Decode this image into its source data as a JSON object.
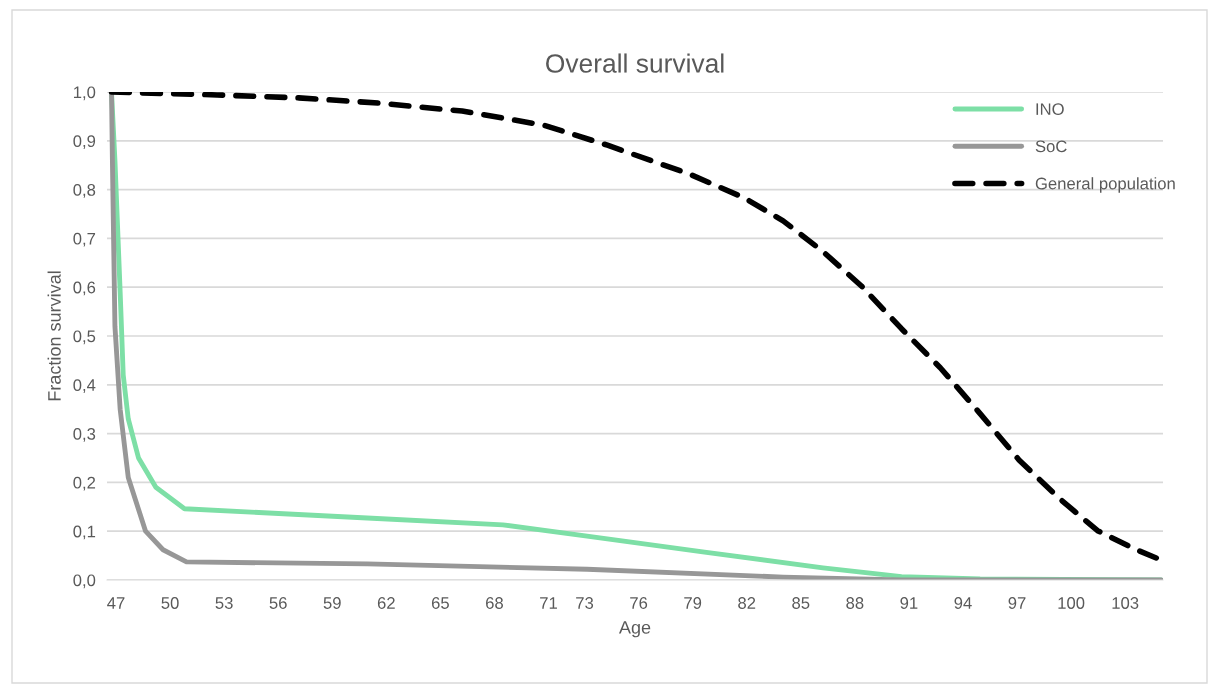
{
  "chart_data": {
    "type": "line",
    "title": "Overall survival",
    "xlabel": "Age",
    "ylabel": "Fraction survival",
    "xlim": [
      46.5,
      105.1
    ],
    "ylim": [
      0,
      1
    ],
    "xticks": [
      47,
      50,
      53,
      56,
      59,
      62,
      65,
      68,
      71,
      73,
      76,
      79,
      82,
      85,
      88,
      91,
      94,
      97,
      100,
      103
    ],
    "yticks": [
      {
        "value": 0,
        "label": "0,0"
      },
      {
        "value": 0.1,
        "label": "0,1"
      },
      {
        "value": 0.2,
        "label": "0,2"
      },
      {
        "value": 0.3,
        "label": "0,3"
      },
      {
        "value": 0.4,
        "label": "0,4"
      },
      {
        "value": 0.5,
        "label": "0,5"
      },
      {
        "value": 0.6,
        "label": "0,6"
      },
      {
        "value": 0.7,
        "label": "0,7"
      },
      {
        "value": 0.8,
        "label": "0,8"
      },
      {
        "value": 0.9,
        "label": "0,9"
      },
      {
        "value": 1,
        "label": "1,0"
      }
    ],
    "grid": "y",
    "legend": "top right",
    "marker": "none",
    "series": [
      {
        "name": "INO",
        "color": "#7ddfa6",
        "line_style": "solid",
        "x": [
          46.75,
          46.94,
          47.23,
          47.4,
          47.68,
          48.25,
          49.21,
          50.8,
          60.94,
          68.47,
          73.14,
          79.66,
          86.23,
          90.59,
          94.95,
          105.0
        ],
        "values": [
          1.0,
          0.86,
          0.59,
          0.42,
          0.33,
          0.25,
          0.19,
          0.146,
          0.127,
          0.113,
          0.09,
          0.057,
          0.025,
          0.007,
          0.002,
          0.0
        ]
      },
      {
        "name": "SoC",
        "color": "#979797",
        "line_style": "solid",
        "x": [
          46.75,
          46.8,
          46.94,
          47.23,
          47.68,
          48.64,
          49.61,
          50.91,
          60.94,
          73.14,
          84.02,
          90.59,
          105.0
        ],
        "values": [
          1.0,
          0.86,
          0.52,
          0.35,
          0.21,
          0.1,
          0.062,
          0.037,
          0.033,
          0.022,
          0.006,
          0.0,
          0.0
        ]
      },
      {
        "name": "General population",
        "color": "#000000",
        "line_style": "dashed",
        "x": [
          46.75,
          52.61,
          57.14,
          61.68,
          66.21,
          70.74,
          74.27,
          78.81,
          81.87,
          84.02,
          86.23,
          88.38,
          90.59,
          92.74,
          94.95,
          97.11,
          99.32,
          101.47,
          103.62,
          105.0
        ],
        "values": [
          1.0,
          0.994,
          0.988,
          0.977,
          0.961,
          0.932,
          0.891,
          0.832,
          0.783,
          0.736,
          0.673,
          0.602,
          0.515,
          0.435,
          0.341,
          0.246,
          0.168,
          0.101,
          0.062,
          0.041
        ]
      }
    ]
  }
}
